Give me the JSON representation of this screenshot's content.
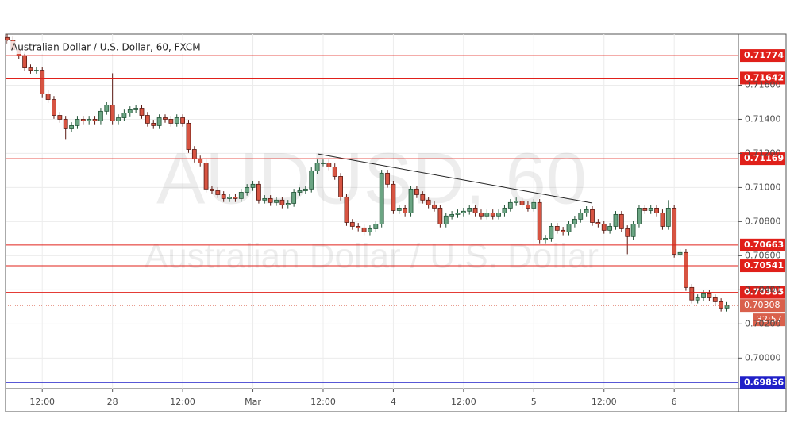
{
  "chart_data": {
    "type": "candlestick",
    "title": "Australian Dollar / U.S. Dollar, 60, FXCM",
    "watermark": "AUDUSD, 60",
    "watermark_subtitle": "Australian Dollar / U.S. Dollar",
    "categories": [
      null,
      null,
      null,
      null,
      null,
      null,
      "12:00",
      null,
      null,
      null,
      null,
      null,
      null,
      null,
      null,
      null,
      null,
      null,
      "28",
      null,
      null,
      null,
      null,
      null,
      null,
      null,
      null,
      null,
      null,
      null,
      "12:00",
      null,
      null,
      null,
      null,
      null,
      null,
      null,
      null,
      null,
      null,
      null,
      "Mar",
      null,
      null,
      null,
      null,
      null,
      null,
      null,
      null,
      null,
      null,
      null,
      "12:00",
      null,
      null,
      null,
      null,
      null,
      null,
      null,
      null,
      null,
      null,
      null,
      "4",
      null,
      null,
      null,
      null,
      null,
      null,
      null,
      null,
      null,
      null,
      null,
      "12:00",
      null,
      null,
      null,
      null,
      null,
      null,
      null,
      null,
      null,
      null,
      null,
      "5",
      null,
      null,
      null,
      null,
      null,
      null,
      null,
      null,
      null,
      null,
      null,
      "12:00",
      null,
      null,
      null,
      null,
      null,
      null,
      null,
      null,
      null,
      null,
      null,
      "6",
      null,
      null,
      null,
      null,
      null,
      null,
      null,
      null,
      null
    ],
    "open": [
      0.7188,
      0.71865,
      0.71809,
      0.71772,
      0.71702,
      0.71688,
      0.71688,
      0.71549,
      0.71516,
      0.71423,
      0.714,
      0.71344,
      0.71363,
      0.714,
      0.71391,
      0.714,
      0.71391,
      0.71447,
      0.71484,
      0.71391,
      0.71409,
      0.71437,
      0.71456,
      0.71465,
      0.71423,
      0.71377,
      0.71363,
      0.71409,
      0.714,
      0.71377,
      0.71409,
      0.71377,
      0.71223,
      0.71167,
      0.71144,
      0.70991,
      0.70981,
      0.70958,
      0.70935,
      0.70944,
      0.70935,
      0.70972,
      0.71,
      0.71019,
      0.70926,
      0.70935,
      0.70912,
      0.70926,
      0.70898,
      0.70907,
      0.70972,
      0.70981,
      0.70991,
      0.71098,
      0.71144,
      0.71144,
      0.71121,
      0.71065,
      0.70944,
      0.70795,
      0.70772,
      0.70763,
      0.7074,
      0.70758,
      0.70786,
      0.71084,
      0.71019,
      0.70865,
      0.70879,
      0.70851,
      0.70991,
      0.70958,
      0.70926,
      0.70898,
      0.70879,
      0.70786,
      0.70833,
      0.70842,
      0.70851,
      0.70861,
      0.70879,
      0.70851,
      0.70833,
      0.70851,
      0.70833,
      0.70851,
      0.70879,
      0.70912,
      0.70921,
      0.70898,
      0.70879,
      0.70912,
      0.70693,
      0.70702,
      0.70772,
      0.70749,
      0.7074,
      0.70786,
      0.70814,
      0.70851,
      0.7087,
      0.70795,
      0.70786,
      0.70749,
      0.70772,
      0.70842,
      0.70758,
      0.70712,
      0.70786,
      0.70879,
      0.70865,
      0.70879,
      0.70851,
      0.70772,
      0.70879,
      0.70609,
      0.70619,
      0.70414,
      0.7034,
      0.70353,
      0.70377,
      0.70353,
      0.7033,
      0.70293
    ],
    "high": [
      0.719,
      0.71885,
      0.71829,
      0.71792,
      0.71722,
      0.71708,
      0.71708,
      0.71569,
      0.71536,
      0.71443,
      0.7142,
      0.71383,
      0.7142,
      0.7142,
      0.7142,
      0.7142,
      0.71467,
      0.71504,
      0.7167,
      0.71429,
      0.71457,
      0.71476,
      0.71485,
      0.71485,
      0.71443,
      0.71397,
      0.71429,
      0.71429,
      0.7142,
      0.71429,
      0.71429,
      0.71397,
      0.71243,
      0.71187,
      0.71164,
      0.71011,
      0.71001,
      0.70978,
      0.70964,
      0.70964,
      0.70992,
      0.7102,
      0.71039,
      0.71039,
      0.70955,
      0.70955,
      0.70946,
      0.70946,
      0.70927,
      0.70992,
      0.71001,
      0.71011,
      0.71118,
      0.71164,
      0.71164,
      0.71164,
      0.71141,
      0.71085,
      0.70964,
      0.70815,
      0.70792,
      0.70783,
      0.70778,
      0.70806,
      0.71104,
      0.71104,
      0.71039,
      0.70899,
      0.70899,
      0.71011,
      0.71011,
      0.70978,
      0.70946,
      0.70918,
      0.70899,
      0.70853,
      0.70862,
      0.70871,
      0.70881,
      0.70899,
      0.70899,
      0.70871,
      0.70871,
      0.70871,
      0.70871,
      0.70899,
      0.70932,
      0.70941,
      0.70941,
      0.70918,
      0.70932,
      0.70932,
      0.70722,
      0.70792,
      0.70792,
      0.70769,
      0.70806,
      0.70834,
      0.70871,
      0.7089,
      0.7089,
      0.70815,
      0.70806,
      0.70792,
      0.70862,
      0.70862,
      0.70778,
      0.70806,
      0.70899,
      0.70899,
      0.70899,
      0.70899,
      0.70871,
      0.70926,
      0.70899,
      0.70639,
      0.70639,
      0.70434,
      0.70373,
      0.70397,
      0.70397,
      0.70373,
      0.7035,
      0.70328
    ],
    "low": [
      0.71845,
      0.71789,
      0.71752,
      0.71682,
      0.71668,
      0.71668,
      0.71529,
      0.71496,
      0.71403,
      0.7138,
      0.71284,
      0.71324,
      0.71343,
      0.71371,
      0.71371,
      0.71371,
      0.71371,
      0.71427,
      0.71371,
      0.71371,
      0.71389,
      0.71417,
      0.71436,
      0.71403,
      0.71357,
      0.71343,
      0.71343,
      0.7138,
      0.71357,
      0.71357,
      0.71357,
      0.71203,
      0.71147,
      0.71124,
      0.70971,
      0.70961,
      0.70938,
      0.70915,
      0.70915,
      0.70915,
      0.70915,
      0.70952,
      0.7098,
      0.70906,
      0.70906,
      0.70892,
      0.70892,
      0.70878,
      0.70878,
      0.70887,
      0.70952,
      0.70961,
      0.70971,
      0.71078,
      0.71124,
      0.71101,
      0.71045,
      0.70924,
      0.70775,
      0.70752,
      0.70743,
      0.7072,
      0.7072,
      0.70738,
      0.70766,
      0.70999,
      0.70845,
      0.70845,
      0.70831,
      0.70831,
      0.70938,
      0.70906,
      0.70878,
      0.70859,
      0.70766,
      0.70766,
      0.70813,
      0.70822,
      0.70831,
      0.70841,
      0.70831,
      0.70813,
      0.70813,
      0.70813,
      0.70813,
      0.70831,
      0.70859,
      0.70892,
      0.70878,
      0.70859,
      0.70859,
      0.70673,
      0.70673,
      0.70682,
      0.70729,
      0.7072,
      0.7072,
      0.70766,
      0.70794,
      0.70831,
      0.70775,
      0.70766,
      0.70729,
      0.70729,
      0.70752,
      0.70738,
      0.70609,
      0.70692,
      0.70766,
      0.70845,
      0.70845,
      0.70831,
      0.70752,
      0.70752,
      0.70589,
      0.70589,
      0.70394,
      0.7032,
      0.7032,
      0.70333,
      0.70333,
      0.7031,
      0.70273,
      0.70273
    ],
    "close": [
      0.71865,
      0.71809,
      0.71772,
      0.71702,
      0.71688,
      0.71688,
      0.71549,
      0.71516,
      0.71423,
      0.714,
      0.71344,
      0.71363,
      0.714,
      0.71391,
      0.714,
      0.71391,
      0.71447,
      0.71484,
      0.71391,
      0.71409,
      0.71437,
      0.71456,
      0.71465,
      0.71423,
      0.71377,
      0.71363,
      0.71409,
      0.714,
      0.71377,
      0.71409,
      0.71377,
      0.71223,
      0.71167,
      0.71144,
      0.70991,
      0.70981,
      0.70958,
      0.70935,
      0.70944,
      0.70935,
      0.70972,
      0.71,
      0.71019,
      0.70926,
      0.70935,
      0.70912,
      0.70926,
      0.70898,
      0.70907,
      0.70972,
      0.70981,
      0.70991,
      0.71098,
      0.71144,
      0.71144,
      0.71121,
      0.71065,
      0.70944,
      0.70795,
      0.70772,
      0.70763,
      0.7074,
      0.70758,
      0.70786,
      0.71084,
      0.71019,
      0.70865,
      0.70879,
      0.70851,
      0.70991,
      0.70958,
      0.70926,
      0.70898,
      0.70879,
      0.70786,
      0.70833,
      0.70842,
      0.70851,
      0.70861,
      0.70879,
      0.70851,
      0.70833,
      0.70851,
      0.70833,
      0.70851,
      0.70879,
      0.70912,
      0.70921,
      0.70898,
      0.70879,
      0.70912,
      0.70693,
      0.70702,
      0.70772,
      0.70749,
      0.7074,
      0.70786,
      0.70814,
      0.70851,
      0.7087,
      0.70795,
      0.70786,
      0.70749,
      0.70772,
      0.70842,
      0.70758,
      0.70712,
      0.70786,
      0.70879,
      0.70865,
      0.70879,
      0.70851,
      0.70772,
      0.70879,
      0.70609,
      0.70619,
      0.70414,
      0.7034,
      0.70353,
      0.70377,
      0.70353,
      0.7033,
      0.70293,
      0.70308
    ],
    "up_color": "#6ba583",
    "down_color": "#d75442",
    "ylim": [
      0.6982,
      0.719
    ],
    "yticks": [
      {
        "value": 0.7,
        "label": "0.70000"
      },
      {
        "value": 0.702,
        "label": "0.70200"
      },
      {
        "value": 0.704,
        "label": "0.70400"
      },
      {
        "value": 0.706,
        "label": "0.70600"
      },
      {
        "value": 0.708,
        "label": "0.70800"
      },
      {
        "value": 0.71,
        "label": "0.71000"
      },
      {
        "value": 0.712,
        "label": "0.71200"
      },
      {
        "value": 0.714,
        "label": "0.71400"
      },
      {
        "value": 0.716,
        "label": "0.71600"
      }
    ],
    "grid": true,
    "levels": [
      {
        "value": 0.71774,
        "color": "#e0201a"
      },
      {
        "value": 0.71642,
        "color": "#e0201a"
      },
      {
        "value": 0.71169,
        "color": "#e0201a"
      },
      {
        "value": 0.70663,
        "color": "#e0201a"
      },
      {
        "value": 0.70541,
        "color": "#e0201a"
      },
      {
        "value": 0.70385,
        "color": "#e0201a"
      },
      {
        "value": 0.69856,
        "color": "#2020c8"
      }
    ],
    "current_price": {
      "value": 0.70308,
      "countdown": "32:57",
      "color": "#d9604c"
    }
  }
}
